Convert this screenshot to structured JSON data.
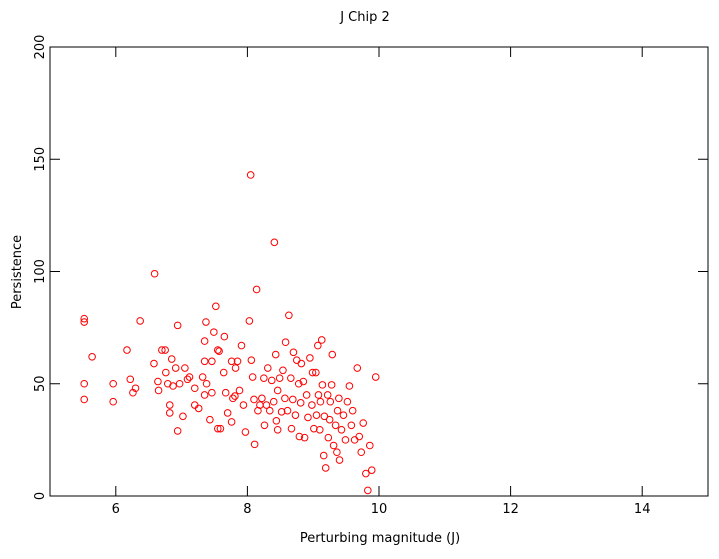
{
  "chart_data": {
    "type": "scatter",
    "title": "J  Chip 2",
    "x_label": "Perturbing magnitude (J)",
    "y_label": "Persistence",
    "color": "#ff0000",
    "xlim": [
      5,
      15
    ],
    "xticks": [
      6,
      8,
      10,
      12,
      14
    ],
    "ylim": [
      0,
      200
    ],
    "yticks": [
      0,
      50,
      100,
      150,
      200
    ],
    "x": [
      5.52,
      5.52,
      5.52,
      5.52,
      5.64,
      5.96,
      5.96,
      6.17,
      6.22,
      6.26,
      6.3,
      6.37,
      6.58,
      6.59,
      6.64,
      6.65,
      6.7,
      6.75,
      6.76,
      6.79,
      6.82,
      6.85,
      6.82,
      6.87,
      6.91,
      6.94,
      6.97,
      6.94,
      7.02,
      7.05,
      7.09,
      7.12,
      7.2,
      7.2,
      7.26,
      7.32,
      7.35,
      7.35,
      7.35,
      7.38,
      7.37,
      7.43,
      7.46,
      7.46,
      7.49,
      7.52,
      7.55,
      7.55,
      7.57,
      7.59,
      7.65,
      7.64,
      7.67,
      7.7,
      7.76,
      7.76,
      7.78,
      7.81,
      7.82,
      7.85,
      7.88,
      7.91,
      7.94,
      7.97,
      8.03,
      8.05,
      8.06,
      8.08,
      8.1,
      8.11,
      8.14,
      8.16,
      8.19,
      8.22,
      8.25,
      8.26,
      8.29,
      8.31,
      8.34,
      8.37,
      8.4,
      8.41,
      8.43,
      8.44,
      8.46,
      8.46,
      8.49,
      8.52,
      8.54,
      8.57,
      8.58,
      8.61,
      8.63,
      8.66,
      8.67,
      8.69,
      8.7,
      8.73,
      8.75,
      8.78,
      8.79,
      8.81,
      8.82,
      8.85,
      8.87,
      8.9,
      8.92,
      8.95,
      8.98,
      8.99,
      9.01,
      9.04,
      9.05,
      9.07,
      9.08,
      9.1,
      9.11,
      9.13,
      9.14,
      9.16,
      9.17,
      9.19,
      9.22,
      9.23,
      9.25,
      9.26,
      9.28,
      9.29,
      9.31,
      9.34,
      9.36,
      9.37,
      9.39,
      9.4,
      9.43,
      9.46,
      9.49,
      9.52,
      9.55,
      9.58,
      9.6,
      9.63,
      9.67,
      9.7,
      9.73,
      9.76,
      9.8,
      9.83,
      9.86,
      9.89,
      9.95
    ],
    "values": [
      79,
      77.5,
      50,
      43,
      62,
      50,
      42,
      65,
      52,
      46,
      48,
      78,
      59,
      99,
      51,
      47,
      65,
      65,
      55,
      50,
      40.5,
      61,
      37,
      49,
      57,
      76,
      50,
      29,
      35.5,
      57,
      52,
      53,
      48,
      40.5,
      39,
      53,
      69,
      60,
      45,
      50,
      77.5,
      34,
      60,
      46,
      73,
      84.5,
      65,
      30,
      64.5,
      30,
      71,
      55,
      46,
      37,
      60,
      33,
      43.5,
      44.5,
      57,
      60,
      47,
      67,
      40.5,
      28.5,
      78,
      143,
      60.5,
      53,
      43,
      23,
      92,
      38,
      40.5,
      43.5,
      52.5,
      31.5,
      40.5,
      57,
      38,
      51.5,
      42,
      113,
      63,
      33.5,
      47,
      29.5,
      52.5,
      37.5,
      56,
      43.5,
      68.5,
      38,
      80.5,
      52.5,
      30,
      43,
      64,
      36,
      60.5,
      50,
      26.5,
      41.5,
      59,
      51,
      26,
      45,
      35,
      61.5,
      40.5,
      55,
      30,
      55,
      36,
      67,
      45,
      29.5,
      42,
      69.5,
      49.5,
      18,
      35.5,
      12.5,
      45,
      26,
      34,
      42,
      49.5,
      63,
      22.5,
      31.5,
      19.5,
      38,
      43.5,
      16,
      29.5,
      36,
      25,
      42,
      49,
      31.5,
      38,
      25,
      57,
      26.5,
      19.5,
      32.5,
      10,
      2.5,
      22.5,
      11.5,
      53
    ]
  }
}
